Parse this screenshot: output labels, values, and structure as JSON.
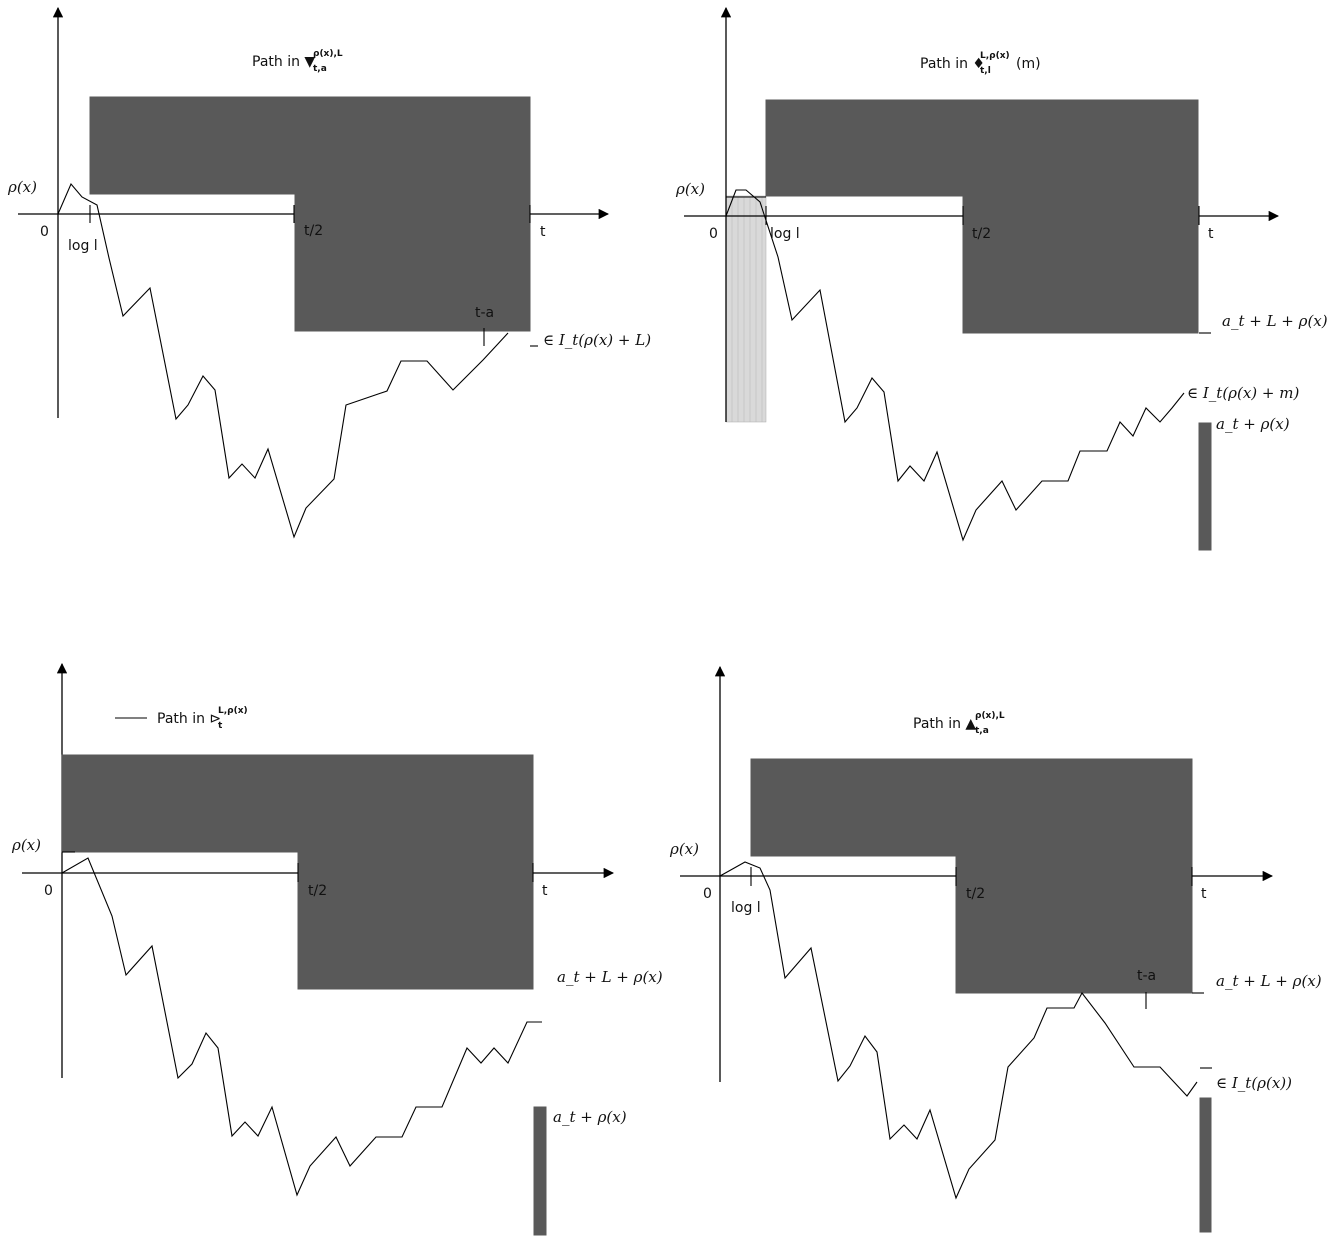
{
  "colors": {
    "block": "#595959",
    "shade": "#d9d9d9",
    "line": "#000000"
  },
  "panels": [
    {
      "title": {
        "prefix": "Path in ",
        "symbol": "▼",
        "sub": "t,a",
        "sup": "ρ(x),L",
        "suffix": ""
      },
      "axis": {
        "origin": "0",
        "rho": "ρ(x)",
        "logl": "log l",
        "half": "t/2",
        "end": "t"
      },
      "labels": {
        "ta": "t-a",
        "interval": "∈ I_t(ρ(x) + L)"
      }
    },
    {
      "title": {
        "prefix": "Path in ",
        "symbol": "♦",
        "sub": "t,l",
        "sup": "L,ρ(x)",
        "suffix": "(m)"
      },
      "axis": {
        "origin": "0",
        "rho": "ρ(x)",
        "logl": "log l",
        "half": "t/2",
        "end": "t"
      },
      "labels": {
        "upper": "a_t + L + ρ(x)",
        "interval": "∈ I_t(ρ(x) + m)",
        "lower": "a_t + ρ(x)"
      }
    },
    {
      "title": {
        "prefix": "Path in ",
        "symbol": "⊳",
        "sub": "t",
        "sup": "L,ρ(x)",
        "suffix": ""
      },
      "axis": {
        "origin": "0",
        "rho": "ρ(x)",
        "half": "t/2",
        "end": "t"
      },
      "labels": {
        "upper": "a_t + L + ρ(x)",
        "lower": "a_t + ρ(x)"
      }
    },
    {
      "title": {
        "prefix": "Path in ",
        "symbol": "▲",
        "sub": "t,a",
        "sup": "ρ(x),L",
        "suffix": ""
      },
      "axis": {
        "origin": "0",
        "rho": "ρ(x)",
        "logl": "log l",
        "half": "t/2",
        "end": "t"
      },
      "labels": {
        "ta": "t-a",
        "upper": "a_t + L + ρ(x)",
        "interval": "∈ I_t(ρ(x))"
      }
    }
  ]
}
